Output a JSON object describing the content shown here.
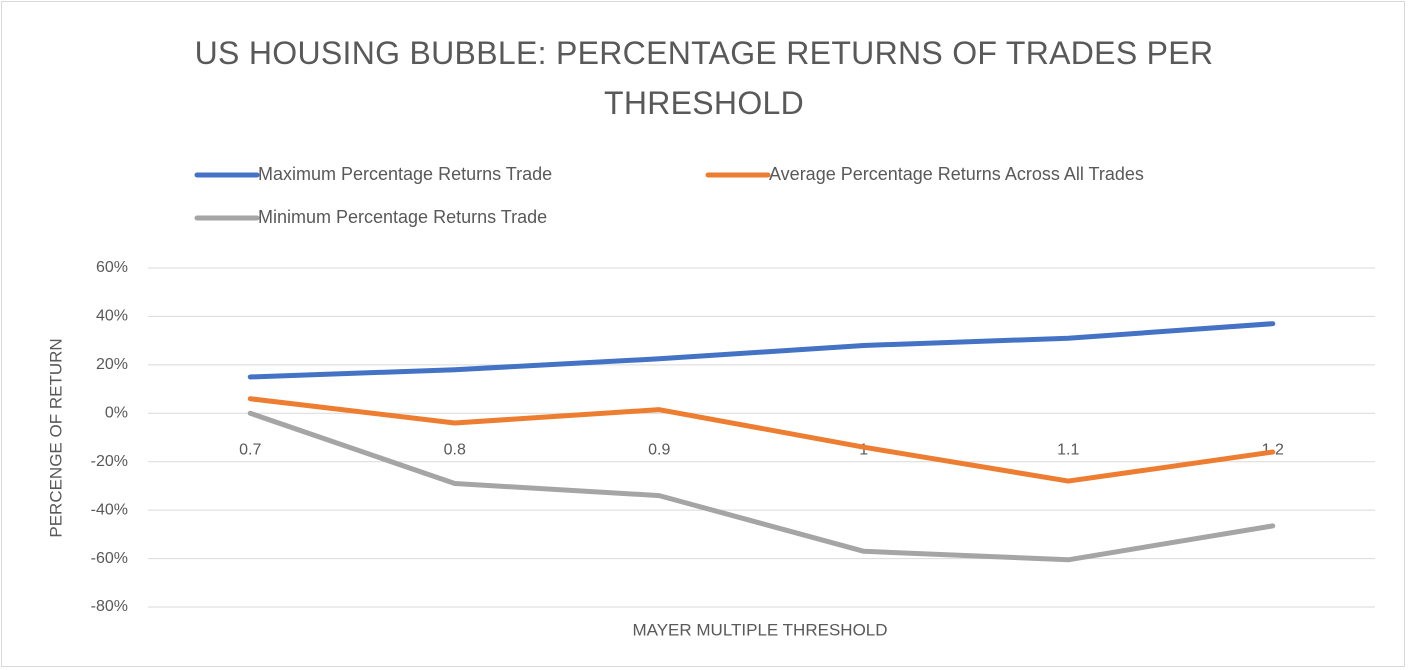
{
  "chart_data": {
    "type": "line",
    "title": "US HOUSING BUBBLE: PERCENTAGE RETURNS OF TRADES PER THRESHOLD",
    "x_label": "MAYER MULTIPLE THRESHOLD",
    "y_label": "PERCENGE OF RETURN",
    "categories": [
      "0.7",
      "0.8",
      "0.9",
      "1",
      "1.1",
      "1.2"
    ],
    "series": [
      {
        "name": "Maximum Percentage Returns Trade",
        "color": "#4472c4",
        "values": [
          15,
          18,
          22.5,
          28,
          31,
          37
        ]
      },
      {
        "name": "Average Percentage Returns Across All Trades",
        "color": "#ed7d31",
        "values": [
          6,
          -4,
          1.5,
          -14,
          -28,
          -16
        ]
      },
      {
        "name": "Minimum Percentage Returns Trade",
        "color": "#a5a5a5",
        "values": [
          0,
          -29,
          -34,
          -57,
          -60.5,
          -46.5
        ]
      }
    ],
    "ylim": [
      -80,
      60
    ],
    "yticks": [
      {
        "value": -80,
        "label": "-80%"
      },
      {
        "value": -60,
        "label": "-60%"
      },
      {
        "value": -40,
        "label": "-40%"
      },
      {
        "value": -20,
        "label": "-20%"
      },
      {
        "value": 0,
        "label": "0%"
      },
      {
        "value": 20,
        "label": "20%"
      },
      {
        "value": 40,
        "label": "40%"
      },
      {
        "value": 60,
        "label": "60%"
      }
    ],
    "grid": true,
    "legend": "top"
  }
}
